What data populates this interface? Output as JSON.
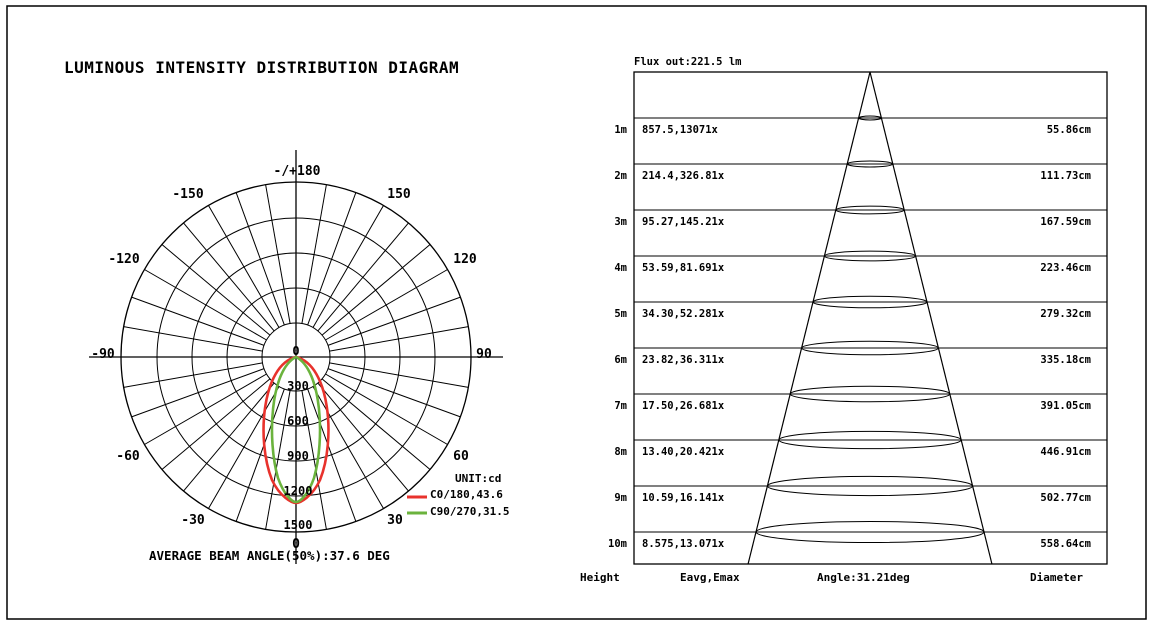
{
  "polar": {
    "title": "LUMINOUS INTENSITY DISTRIBUTION DIAGRAM",
    "angle_labels": [
      "-/+180",
      "-150",
      "150",
      "-120",
      "120",
      "-90",
      "90",
      "-60",
      "60",
      "-30",
      "30",
      "0"
    ],
    "radial_labels": [
      "0",
      "300",
      "600",
      "900",
      "1200",
      "1500"
    ],
    "unit": "UNIT:cd",
    "legend": [
      {
        "label": "C0/180,43.6",
        "color": "#e8322c"
      },
      {
        "label": "C90/270,31.5",
        "color": "#6bb33d"
      }
    ],
    "beam_angle": "AVERAGE BEAM ANGLE(50%):37.6 DEG"
  },
  "cone": {
    "flux": "Flux out:221.5 lm",
    "rows": [
      {
        "height": "1m",
        "eavg_emax": "857.5,13071x",
        "diameter": "55.86cm"
      },
      {
        "height": "2m",
        "eavg_emax": "214.4,326.81x",
        "diameter": "111.73cm"
      },
      {
        "height": "3m",
        "eavg_emax": "95.27,145.21x",
        "diameter": "167.59cm"
      },
      {
        "height": "4m",
        "eavg_emax": "53.59,81.691x",
        "diameter": "223.46cm"
      },
      {
        "height": "5m",
        "eavg_emax": "34.30,52.281x",
        "diameter": "279.32cm"
      },
      {
        "height": "6m",
        "eavg_emax": "23.82,36.311x",
        "diameter": "335.18cm"
      },
      {
        "height": "7m",
        "eavg_emax": "17.50,26.681x",
        "diameter": "391.05cm"
      },
      {
        "height": "8m",
        "eavg_emax": "13.40,20.421x",
        "diameter": "446.91cm"
      },
      {
        "height": "9m",
        "eavg_emax": "10.59,16.141x",
        "diameter": "502.77cm"
      },
      {
        "height": "10m",
        "eavg_emax": "8.575,13.071x",
        "diameter": "558.64cm"
      }
    ],
    "footer": {
      "height": "Height",
      "eavg": "Eavg,Emax",
      "angle": "Angle:31.21deg",
      "diameter": "Diameter"
    }
  }
}
